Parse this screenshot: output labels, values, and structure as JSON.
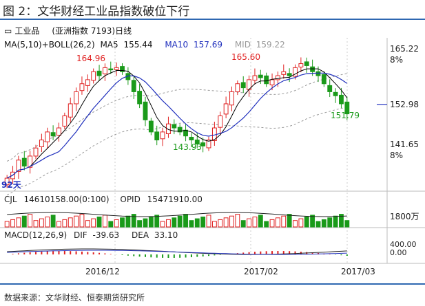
{
  "figure": {
    "title": "图 2：文华财经工业品指数破位下行",
    "source": "数据来源：文华财经、恒泰期货研究所"
  },
  "header": {
    "icon": "chart-window-icon",
    "name": "工业品",
    "detail": "(亚洲指数 7193)日线"
  },
  "main_indicator": {
    "label": "MA(5,10)+BOLL(26,2)",
    "ma5_label": "MA5",
    "ma5_value": "155.44",
    "ma10_label": "MA10",
    "ma10_value": "157.69",
    "mid_label": "MID",
    "mid_value": "159.22",
    "colors": {
      "ma5": "#000000",
      "ma10": "#1f2fbd",
      "mid": "#999999"
    }
  },
  "price_axis": {
    "ticks": [
      {
        "value": "165.22",
        "pct": "8%"
      },
      {
        "value": "152.98",
        "pct": ""
      },
      {
        "value": "141.65",
        "pct": "8%"
      }
    ]
  },
  "annotations": {
    "high1": "164.96",
    "high2": "165.60",
    "low1": "143.93",
    "low2": "151.79",
    "corner": "92天"
  },
  "volume_panel": {
    "cjl_label": "CJL",
    "cjl_value": "14610158.00(0:100)",
    "opid_label": "OPID",
    "opid_value": "15471910.00",
    "axis_label": "1800万"
  },
  "macd_panel": {
    "label": "MACD(12,26,9)",
    "dif_label": "DIF",
    "dif_value": "-39.63",
    "dea_label": "DEA",
    "dea_value": "33.10",
    "axis_top": "400.00",
    "axis_bottom": "0.00"
  },
  "x_axis": {
    "labels": [
      "2016/12",
      "2017/02",
      "2017/03"
    ]
  },
  "colors": {
    "up": "#e02020",
    "down": "#1a9a1a",
    "accent": "#2e67b1",
    "label_red": "#e02020",
    "label_green": "#1a9a1a"
  },
  "chart_data": {
    "type": "candlestick",
    "title": "工业品 (亚洲指数 7193)日线",
    "period_start": "2016/11",
    "period_end": "2017/03",
    "key_values": {
      "high_1": 164.96,
      "high_2": 165.6,
      "low_1": 143.93,
      "low_2": 151.79,
      "last": 152.98,
      "ma5": 155.44,
      "ma10": 157.69,
      "mid": 159.22
    },
    "closes_approx": [
      136.5,
      138,
      141,
      139.5,
      142,
      144,
      146,
      148,
      147,
      149,
      152,
      155,
      158,
      160,
      161,
      163,
      162,
      164,
      163.5,
      164,
      163,
      161,
      158,
      155,
      151,
      148,
      146,
      148,
      150,
      149,
      148,
      147,
      146,
      145,
      144.5,
      146,
      149,
      152,
      155,
      158,
      160,
      159,
      161,
      162,
      161.5,
      160,
      161,
      162,
      163,
      162,
      164,
      165,
      164.5,
      163,
      162,
      160,
      158,
      157,
      155,
      152.5
    ],
    "volume_axis_max": "1800万",
    "macd_axis": [
      "400.00",
      "0.00"
    ]
  }
}
